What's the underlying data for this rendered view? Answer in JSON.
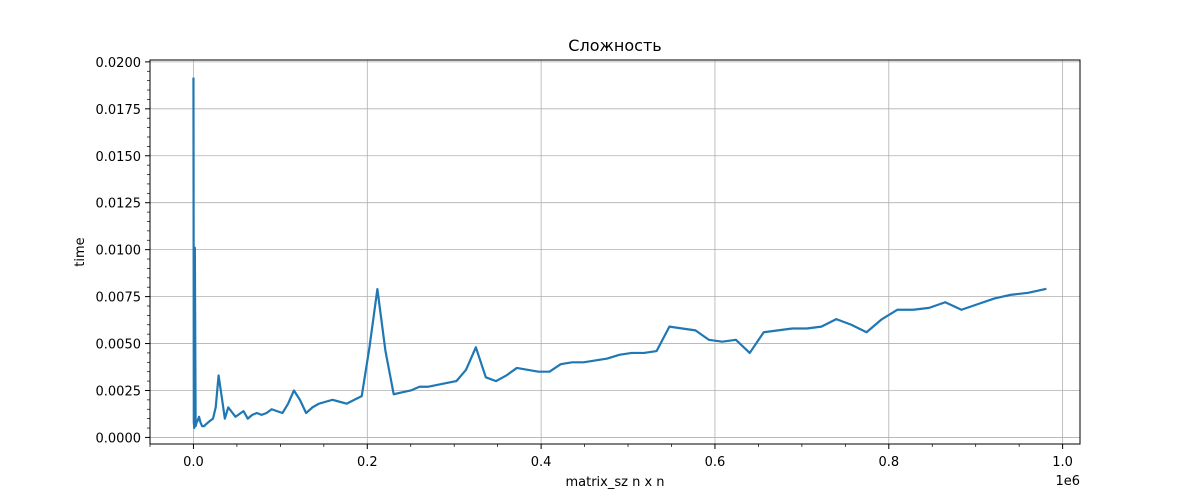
{
  "chart_data": {
    "type": "line",
    "title": "Сложность",
    "xlabel": "matrix_sz n x n",
    "ylabel": "time",
    "x_offset_label": "1e6",
    "xlim": [
      -0.05,
      1.02
    ],
    "ylim": [
      -0.00035,
      0.0201
    ],
    "x_ticks": [
      0.0,
      0.2,
      0.4,
      0.6,
      0.8,
      1.0
    ],
    "x_tick_labels": [
      "0.0",
      "0.2",
      "0.4",
      "0.6",
      "0.8",
      "1.0"
    ],
    "y_ticks": [
      0.0,
      0.0025,
      0.005,
      0.0075,
      0.01,
      0.0125,
      0.015,
      0.0175,
      0.02
    ],
    "y_tick_labels": [
      "0.0000",
      "0.0025",
      "0.0050",
      "0.0075",
      "0.0100",
      "0.0125",
      "0.0150",
      "0.0175",
      "0.0200"
    ],
    "grid": true,
    "minor_ticks": true,
    "line_color": "#1f77b4",
    "series": [
      {
        "x": [
          0.0,
          0.0004,
          0.0009,
          0.0016,
          0.0025,
          0.0036,
          0.0049,
          0.0064,
          0.0081,
          0.01,
          0.0121,
          0.0144,
          0.0169,
          0.0196,
          0.0225,
          0.0256,
          0.0289,
          0.0324,
          0.0361,
          0.04,
          0.0484,
          0.0576,
          0.0625,
          0.0676,
          0.0729,
          0.0784,
          0.0841,
          0.09,
          0.0961,
          0.1024,
          0.1089,
          0.1156,
          0.1225,
          0.1296,
          0.1369,
          0.1444,
          0.1521,
          0.16,
          0.1681,
          0.1764,
          0.1849,
          0.1936,
          0.2025,
          0.2116,
          0.2209,
          0.2304,
          0.2401,
          0.25,
          0.2601,
          0.2704,
          0.2809,
          0.2916,
          0.3025,
          0.3136,
          0.3249,
          0.3364,
          0.3481,
          0.36,
          0.3721,
          0.3844,
          0.3969,
          0.4096,
          0.4225,
          0.4356,
          0.4489,
          0.4624,
          0.4761,
          0.49,
          0.5041,
          0.5184,
          0.5329,
          0.5476,
          0.5625,
          0.5776,
          0.5929,
          0.6084,
          0.6241,
          0.64,
          0.6561,
          0.6724,
          0.6889,
          0.7056,
          0.7225,
          0.7396,
          0.7569,
          0.7744,
          0.7921,
          0.81,
          0.8281,
          0.8464,
          0.8649,
          0.8836,
          0.9025,
          0.9216,
          0.9409,
          0.9604,
          0.9801
        ],
        "y": [
          0.0191,
          0.0008,
          0.0005,
          0.0101,
          0.0006,
          0.0008,
          0.0009,
          0.0011,
          0.0008,
          0.0006,
          0.0006,
          0.0007,
          0.0008,
          0.0009,
          0.001,
          0.0016,
          0.0033,
          0.0022,
          0.001,
          0.0016,
          0.0011,
          0.0014,
          0.001,
          0.0012,
          0.0013,
          0.0012,
          0.0013,
          0.0015,
          0.0014,
          0.0013,
          0.0018,
          0.0025,
          0.002,
          0.0013,
          0.0016,
          0.0018,
          0.0019,
          0.002,
          0.0019,
          0.0018,
          0.002,
          0.0022,
          0.0048,
          0.0079,
          0.0046,
          0.0023,
          0.0024,
          0.0025,
          0.0027,
          0.0027,
          0.0028,
          0.0029,
          0.003,
          0.0036,
          0.0048,
          0.0032,
          0.003,
          0.0033,
          0.0037,
          0.0036,
          0.0035,
          0.0035,
          0.0039,
          0.004,
          0.004,
          0.0041,
          0.0042,
          0.0044,
          0.0045,
          0.0045,
          0.0046,
          0.0059,
          0.0058,
          0.0057,
          0.0052,
          0.0051,
          0.0052,
          0.0045,
          0.0056,
          0.0057,
          0.0058,
          0.0058,
          0.0059,
          0.0063,
          0.006,
          0.0056,
          0.0063,
          0.0068,
          0.0068,
          0.0069,
          0.0072,
          0.0068,
          0.0071,
          0.0074,
          0.0076,
          0.0077,
          0.0079
        ]
      }
    ]
  }
}
